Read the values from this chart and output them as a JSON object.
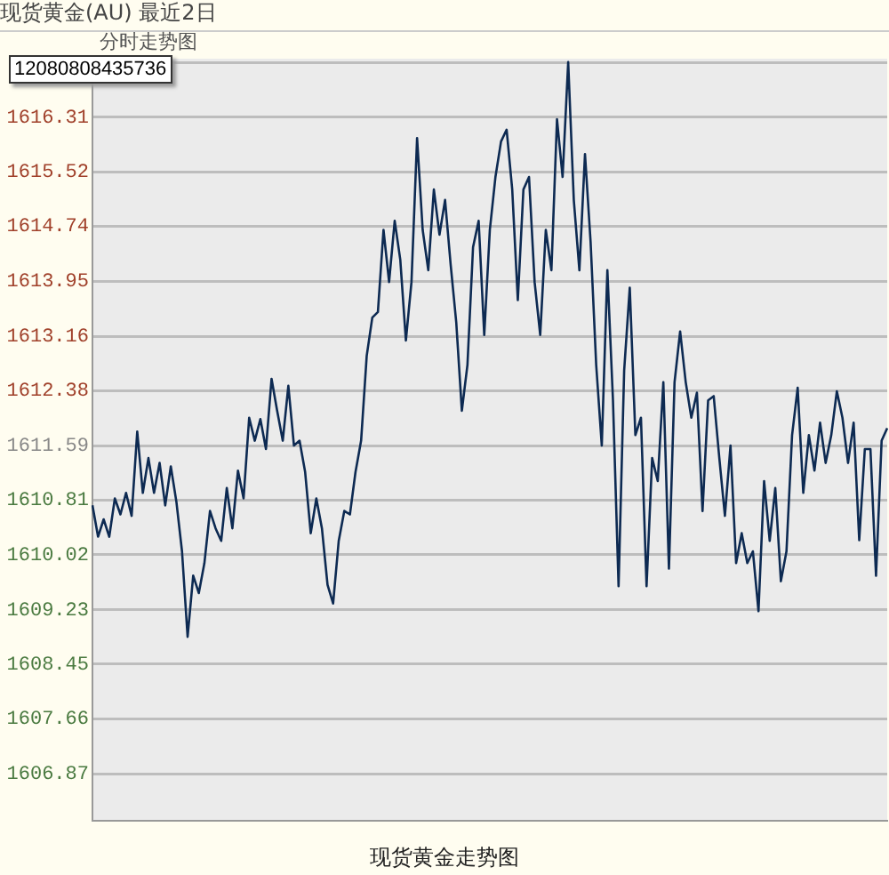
{
  "chart_data": {
    "type": "line",
    "title": "现货黄金(AU) 最近2日",
    "subtitle": "分时走势图",
    "xlabel": "现货黄金走势图",
    "annotations": [
      "12080808435736"
    ],
    "categories": [
      null,
      null,
      null,
      null,
      null,
      null,
      null,
      null,
      null,
      null,
      null,
      null,
      null,
      null,
      null,
      null,
      null,
      null,
      null,
      null,
      null,
      null,
      null,
      null,
      null,
      null,
      null,
      null,
      null,
      null,
      null,
      null,
      null,
      null,
      null,
      null,
      null,
      null,
      null,
      null,
      null,
      null,
      null,
      null,
      null,
      null,
      null,
      null,
      null,
      null,
      null,
      null,
      null,
      null,
      null,
      null,
      null,
      null,
      null,
      null,
      null,
      null,
      null,
      null,
      null,
      null,
      null,
      null,
      null,
      null,
      null,
      null,
      null,
      null,
      null,
      null,
      null,
      null,
      null,
      null,
      null,
      null,
      null,
      null,
      null,
      null,
      null,
      null,
      null,
      null,
      null,
      null,
      null,
      null,
      null,
      null,
      null,
      null,
      null,
      null,
      null,
      null,
      null,
      null,
      null,
      null,
      null,
      null,
      null,
      null,
      null,
      null,
      null,
      null,
      null,
      null,
      null,
      null,
      null,
      null,
      null,
      null,
      null,
      null,
      null,
      null,
      null,
      null,
      null,
      null,
      null,
      null,
      null,
      null,
      null,
      null,
      null,
      null,
      null,
      null,
      null,
      null,
      null
    ],
    "series": [
      {
        "color": "#0d2a52",
        "values": [
          1610.73,
          1610.28,
          1610.53,
          1610.28,
          1610.83,
          1610.6,
          1610.91,
          1610.58,
          1611.79,
          1610.91,
          1611.41,
          1610.91,
          1611.34,
          1610.73,
          1611.29,
          1610.78,
          1610.07,
          1608.84,
          1609.72,
          1609.47,
          1609.9,
          1610.65,
          1610.4,
          1610.22,
          1610.98,
          1610.4,
          1611.23,
          1610.83,
          1611.99,
          1611.66,
          1611.97,
          1611.54,
          1612.55,
          1612.09,
          1611.66,
          1612.45,
          1611.59,
          1611.66,
          1611.21,
          1610.33,
          1610.83,
          1610.4,
          1609.59,
          1609.32,
          1610.22,
          1610.65,
          1610.6,
          1611.21,
          1611.66,
          1612.88,
          1613.43,
          1613.51,
          1614.69,
          1613.94,
          1614.82,
          1614.26,
          1613.1,
          1613.94,
          1616.01,
          1614.69,
          1614.11,
          1615.27,
          1614.62,
          1615.12,
          1614.19,
          1613.36,
          1612.09,
          1612.75,
          1614.44,
          1614.82,
          1613.18,
          1614.69,
          1615.45,
          1615.96,
          1616.13,
          1615.27,
          1613.68,
          1615.27,
          1615.45,
          1613.94,
          1613.18,
          1614.69,
          1614.11,
          1616.28,
          1615.45,
          1617.1,
          1615.12,
          1614.11,
          1615.78,
          1614.52,
          1612.75,
          1611.59,
          1614.11,
          1612.24,
          1609.57,
          1612.67,
          1613.86,
          1611.74,
          1611.99,
          1609.57,
          1611.41,
          1611.08,
          1612.5,
          1609.82,
          1612.5,
          1613.23,
          1612.5,
          1611.99,
          1612.35,
          1610.65,
          1612.24,
          1612.3,
          1611.41,
          1610.58,
          1611.59,
          1609.9,
          1610.33,
          1609.9,
          1610.07,
          1609.21,
          1611.08,
          1610.22,
          1610.98,
          1609.64,
          1610.07,
          1611.74,
          1612.42,
          1610.91,
          1611.74,
          1611.23,
          1611.92,
          1611.34,
          1611.74,
          1612.37,
          1611.99,
          1611.34,
          1611.92,
          1610.23,
          1611.54,
          1611.54,
          1609.72,
          1611.66,
          1611.84
        ]
      }
    ],
    "ylim": [
      1606.2,
      1617.15
    ],
    "yticks": [
      1606.87,
      1607.66,
      1608.45,
      1609.23,
      1610.02,
      1610.81,
      1611.59,
      1612.38,
      1613.16,
      1613.95,
      1614.74,
      1615.52,
      1616.31,
      {
        "value": 1617.09,
        "label": null
      }
    ],
    "grid": "y",
    "legend": false,
    "marker": "none",
    "line_style": "solid"
  }
}
